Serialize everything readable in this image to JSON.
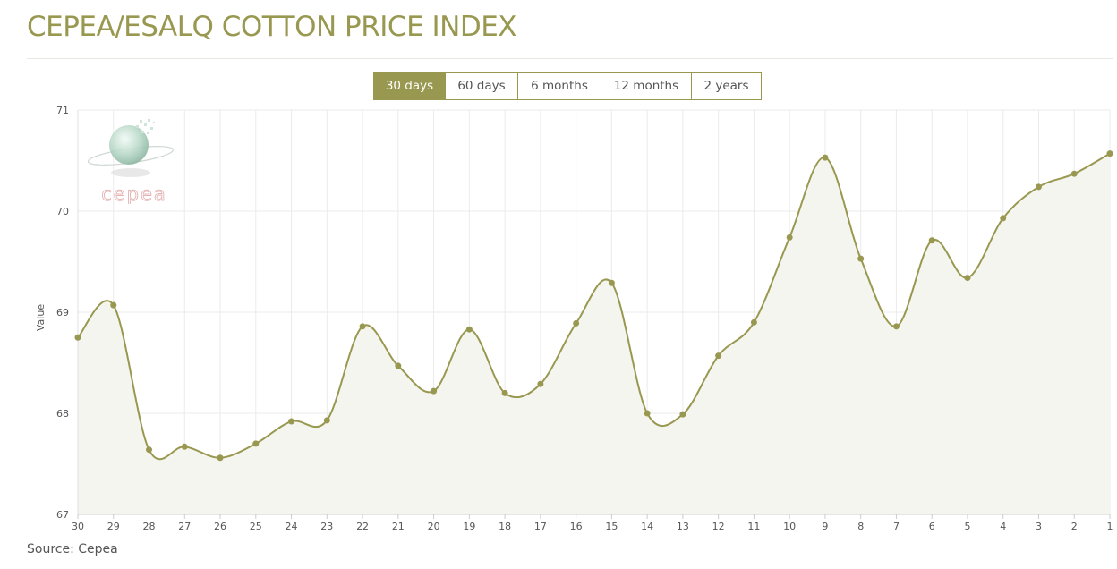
{
  "page": {
    "title": "CEPEA/ESALQ COTTON PRICE INDEX",
    "source": "Source: Cepea"
  },
  "range_tabs": [
    {
      "label": "30 days",
      "active": true
    },
    {
      "label": "60 days",
      "active": false
    },
    {
      "label": "6 months",
      "active": false
    },
    {
      "label": "12 months",
      "active": false
    },
    {
      "label": "2 years",
      "active": false
    }
  ],
  "logo": {
    "text": "cepea",
    "icon": "cepea-globe-logo"
  },
  "colors": {
    "accent": "#999850",
    "line": "#999850",
    "point": "#999850",
    "area_fill": "#f5f5f0",
    "grid": "#ebebeb"
  },
  "chart_data": {
    "type": "line",
    "title": "",
    "xlabel": "",
    "ylabel": "Value",
    "ylim": [
      67,
      71
    ],
    "yticks": [
      67,
      68,
      69,
      70,
      71
    ],
    "grid": true,
    "area_fill": true,
    "smooth": true,
    "categories": [
      "30",
      "29",
      "28",
      "27",
      "26",
      "25",
      "24",
      "23",
      "22",
      "21",
      "20",
      "19",
      "18",
      "17",
      "16",
      "15",
      "14",
      "13",
      "12",
      "11",
      "10",
      "9",
      "8",
      "7",
      "6",
      "5",
      "4",
      "3",
      "2",
      "1"
    ],
    "series": [
      {
        "values": [
          68.75,
          69.07,
          67.64,
          67.67,
          67.56,
          67.7,
          67.92,
          67.93,
          68.86,
          68.47,
          68.22,
          68.83,
          68.2,
          68.29,
          68.89,
          69.29,
          68.0,
          67.99,
          68.57,
          68.9,
          69.74,
          70.53,
          69.53,
          68.86,
          69.71,
          69.34,
          69.93,
          70.24,
          70.37,
          70.57
        ]
      }
    ]
  }
}
